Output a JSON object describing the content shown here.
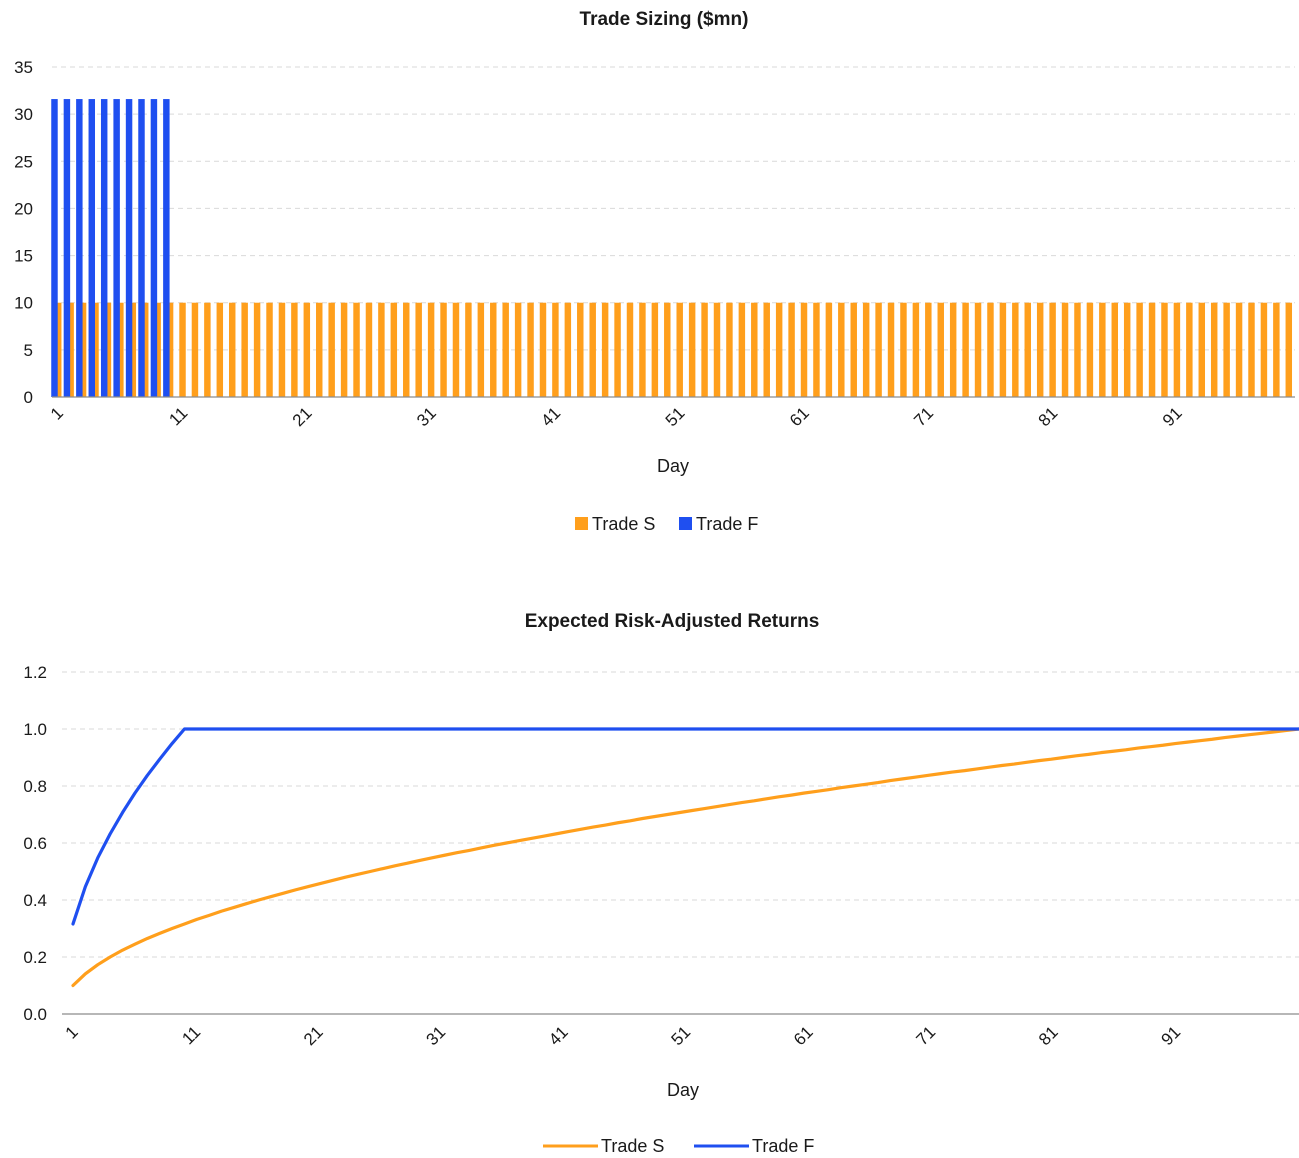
{
  "colors": {
    "trade_s": "#FF9F1C",
    "trade_f": "#1F4FF0"
  },
  "chart_data": [
    {
      "type": "bar",
      "title": "Trade Sizing ($mn)",
      "xlabel": "Day",
      "ylabel": "",
      "ylim": [
        0,
        35
      ],
      "yticks": [
        "0",
        "5",
        "10",
        "15",
        "20",
        "25",
        "30",
        "35"
      ],
      "xticks": [
        "1",
        "11",
        "21",
        "31",
        "41",
        "51",
        "61",
        "71",
        "81",
        "91"
      ],
      "days": 100,
      "grid": true,
      "legend_position": "bottom",
      "series": [
        {
          "name": "Trade S",
          "color": "#FF9F1C",
          "values": [
            10,
            10,
            10,
            10,
            10,
            10,
            10,
            10,
            10,
            10,
            10,
            10,
            10,
            10,
            10,
            10,
            10,
            10,
            10,
            10,
            10,
            10,
            10,
            10,
            10,
            10,
            10,
            10,
            10,
            10,
            10,
            10,
            10,
            10,
            10,
            10,
            10,
            10,
            10,
            10,
            10,
            10,
            10,
            10,
            10,
            10,
            10,
            10,
            10,
            10,
            10,
            10,
            10,
            10,
            10,
            10,
            10,
            10,
            10,
            10,
            10,
            10,
            10,
            10,
            10,
            10,
            10,
            10,
            10,
            10,
            10,
            10,
            10,
            10,
            10,
            10,
            10,
            10,
            10,
            10,
            10,
            10,
            10,
            10,
            10,
            10,
            10,
            10,
            10,
            10,
            10,
            10,
            10,
            10,
            10,
            10,
            10,
            10,
            10,
            10
          ]
        },
        {
          "name": "Trade F",
          "color": "#1F4FF0",
          "values": [
            31.6,
            31.6,
            31.6,
            31.6,
            31.6,
            31.6,
            31.6,
            31.6,
            31.6,
            31.6,
            0,
            0,
            0,
            0,
            0,
            0,
            0,
            0,
            0,
            0,
            0,
            0,
            0,
            0,
            0,
            0,
            0,
            0,
            0,
            0,
            0,
            0,
            0,
            0,
            0,
            0,
            0,
            0,
            0,
            0,
            0,
            0,
            0,
            0,
            0,
            0,
            0,
            0,
            0,
            0,
            0,
            0,
            0,
            0,
            0,
            0,
            0,
            0,
            0,
            0,
            0,
            0,
            0,
            0,
            0,
            0,
            0,
            0,
            0,
            0,
            0,
            0,
            0,
            0,
            0,
            0,
            0,
            0,
            0,
            0,
            0,
            0,
            0,
            0,
            0,
            0,
            0,
            0,
            0,
            0,
            0,
            0,
            0,
            0,
            0,
            0,
            0,
            0,
            0,
            0
          ]
        }
      ]
    },
    {
      "type": "line",
      "title": "Expected Risk-Adjusted Returns",
      "xlabel": "Day",
      "ylabel": "",
      "ylim": [
        0,
        1.2
      ],
      "yticks": [
        "0.0",
        "0.2",
        "0.4",
        "0.6",
        "0.8",
        "1.0",
        "1.2"
      ],
      "xticks": [
        "1",
        "11",
        "21",
        "31",
        "41",
        "51",
        "61",
        "71",
        "81",
        "91"
      ],
      "days": 100,
      "grid": true,
      "legend_position": "bottom",
      "series": [
        {
          "name": "Trade S",
          "color": "#FF9F1C",
          "values": [
            0.1,
            0.141,
            0.173,
            0.2,
            0.224,
            0.245,
            0.265,
            0.283,
            0.3,
            0.316,
            0.332,
            0.346,
            0.361,
            0.374,
            0.387,
            0.4,
            0.412,
            0.424,
            0.436,
            0.447,
            0.458,
            0.469,
            0.48,
            0.49,
            0.5,
            0.51,
            0.52,
            0.529,
            0.539,
            0.548,
            0.557,
            0.566,
            0.574,
            0.583,
            0.592,
            0.6,
            0.608,
            0.616,
            0.624,
            0.632,
            0.64,
            0.648,
            0.656,
            0.663,
            0.671,
            0.678,
            0.686,
            0.693,
            0.7,
            0.707,
            0.714,
            0.721,
            0.728,
            0.735,
            0.742,
            0.748,
            0.755,
            0.762,
            0.768,
            0.775,
            0.781,
            0.787,
            0.794,
            0.8,
            0.806,
            0.812,
            0.819,
            0.825,
            0.831,
            0.837,
            0.843,
            0.849,
            0.854,
            0.86,
            0.866,
            0.872,
            0.877,
            0.883,
            0.889,
            0.894,
            0.9,
            0.906,
            0.911,
            0.917,
            0.922,
            0.927,
            0.933,
            0.938,
            0.943,
            0.949,
            0.954,
            0.959,
            0.964,
            0.97,
            0.975,
            0.98,
            0.985,
            0.99,
            0.995,
            1.0
          ]
        },
        {
          "name": "Trade F",
          "color": "#1F4FF0",
          "values": [
            0.316,
            0.447,
            0.548,
            0.632,
            0.707,
            0.775,
            0.837,
            0.894,
            0.949,
            1.0,
            1,
            1,
            1,
            1,
            1,
            1,
            1,
            1,
            1,
            1,
            1,
            1,
            1,
            1,
            1,
            1,
            1,
            1,
            1,
            1,
            1,
            1,
            1,
            1,
            1,
            1,
            1,
            1,
            1,
            1,
            1,
            1,
            1,
            1,
            1,
            1,
            1,
            1,
            1,
            1,
            1,
            1,
            1,
            1,
            1,
            1,
            1,
            1,
            1,
            1,
            1,
            1,
            1,
            1,
            1,
            1,
            1,
            1,
            1,
            1,
            1,
            1,
            1,
            1,
            1,
            1,
            1,
            1,
            1,
            1,
            1,
            1,
            1,
            1,
            1,
            1,
            1,
            1,
            1,
            1,
            1,
            1,
            1,
            1,
            1,
            1,
            1,
            1,
            1,
            1
          ]
        }
      ]
    }
  ]
}
